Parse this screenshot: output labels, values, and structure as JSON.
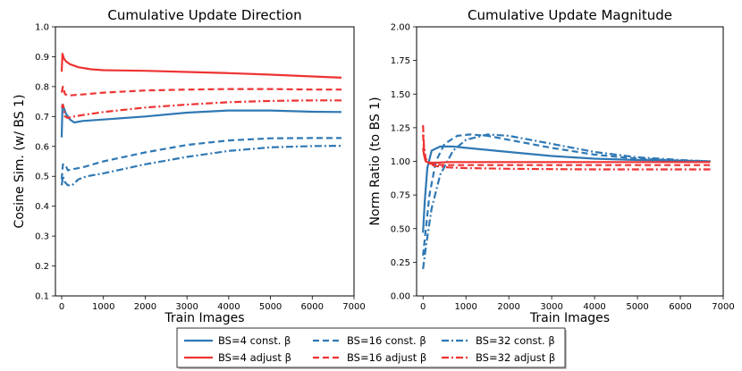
{
  "chart_data": [
    {
      "type": "line",
      "title": "Cumulative Update Direction",
      "xlabel": "Train Images",
      "ylabel": "Cosine Sim. (w/ BS 1)",
      "xlim": [
        -150,
        7000
      ],
      "ylim": [
        0.1,
        1.0
      ],
      "xticks": [
        "0",
        "1000",
        "2000",
        "3000",
        "4000",
        "5000",
        "6000",
        "7000"
      ],
      "yticks": [
        "0.1",
        "0.2",
        "0.3",
        "0.4",
        "0.5",
        "0.6",
        "0.7",
        "0.8",
        "0.9",
        "1.0"
      ],
      "grid": false,
      "series": [
        {
          "name": "BS=4 const. β",
          "color": "#2f78b4",
          "style": "solid",
          "x": [
            0,
            20,
            50,
            100,
            200,
            300,
            500,
            1000,
            2000,
            3000,
            4000,
            5000,
            6000,
            6700
          ],
          "y": [
            0.63,
            0.74,
            0.73,
            0.71,
            0.69,
            0.68,
            0.685,
            0.69,
            0.7,
            0.713,
            0.72,
            0.72,
            0.716,
            0.715
          ]
        },
        {
          "name": "BS=16 const. β",
          "color": "#2f78b4",
          "style": "dashed",
          "x": [
            0,
            30,
            80,
            150,
            300,
            500,
            1000,
            2000,
            3000,
            4000,
            5000,
            6000,
            6700
          ],
          "y": [
            0.49,
            0.54,
            0.54,
            0.52,
            0.525,
            0.53,
            0.55,
            0.58,
            0.605,
            0.62,
            0.627,
            0.628,
            0.628
          ]
        },
        {
          "name": "BS=32 const. β",
          "color": "#2f78b4",
          "style": "dashdot",
          "x": [
            0,
            30,
            80,
            150,
            250,
            400,
            600,
            1000,
            2000,
            3000,
            4000,
            5000,
            6000,
            6700
          ],
          "y": [
            0.47,
            0.5,
            0.48,
            0.47,
            0.47,
            0.49,
            0.5,
            0.51,
            0.54,
            0.565,
            0.585,
            0.597,
            0.601,
            0.602
          ]
        },
        {
          "name": "BS=4 adjust β",
          "color": "#ee3333",
          "style": "solid",
          "x": [
            0,
            20,
            50,
            100,
            200,
            400,
            700,
            1000,
            2000,
            3000,
            4000,
            5000,
            6000,
            6700
          ],
          "y": [
            0.85,
            0.91,
            0.895,
            0.885,
            0.875,
            0.865,
            0.858,
            0.855,
            0.853,
            0.849,
            0.845,
            0.84,
            0.834,
            0.83
          ]
        },
        {
          "name": "BS=16 adjust β",
          "color": "#ee3333",
          "style": "dashed",
          "x": [
            0,
            30,
            80,
            150,
            300,
            600,
            1000,
            2000,
            3000,
            4000,
            5000,
            6000,
            6700
          ],
          "y": [
            0.78,
            0.8,
            0.775,
            0.77,
            0.772,
            0.775,
            0.78,
            0.787,
            0.79,
            0.792,
            0.792,
            0.79,
            0.79
          ]
        },
        {
          "name": "BS=32 adjust β",
          "color": "#ee3333",
          "style": "dashdot",
          "x": [
            0,
            30,
            80,
            150,
            300,
            500,
            1000,
            2000,
            3000,
            4000,
            5000,
            6000,
            6700
          ],
          "y": [
            0.73,
            0.74,
            0.7,
            0.695,
            0.7,
            0.705,
            0.715,
            0.73,
            0.74,
            0.748,
            0.752,
            0.754,
            0.754
          ]
        }
      ]
    },
    {
      "type": "line",
      "title": "Cumulative Update Magnitude",
      "xlabel": "Train Images",
      "ylabel": "Norm Ratio (to BS 1)",
      "xlim": [
        -150,
        7000
      ],
      "ylim": [
        0.0,
        2.0
      ],
      "xticks": [
        "0",
        "1000",
        "2000",
        "3000",
        "4000",
        "5000",
        "6000",
        "7000"
      ],
      "yticks": [
        "0.00",
        "0.25",
        "0.50",
        "0.75",
        "1.00",
        "1.25",
        "1.50",
        "1.75",
        "2.00"
      ],
      "grid": false,
      "series": [
        {
          "name": "BS=4 const. β",
          "color": "#2f78b4",
          "style": "solid",
          "x": [
            0,
            40,
            100,
            200,
            400,
            700,
            1000,
            2000,
            3000,
            4000,
            5000,
            6000,
            6700
          ],
          "y": [
            0.47,
            0.7,
            0.95,
            1.08,
            1.11,
            1.11,
            1.1,
            1.07,
            1.04,
            1.02,
            1.01,
            1.005,
            1.0
          ]
        },
        {
          "name": "BS=16 const. β",
          "color": "#2f78b4",
          "style": "dashed",
          "x": [
            0,
            50,
            150,
            300,
            500,
            800,
            1100,
            1500,
            2000,
            3000,
            4000,
            5000,
            6000,
            6700
          ],
          "y": [
            0.3,
            0.45,
            0.75,
            1.0,
            1.13,
            1.19,
            1.2,
            1.19,
            1.16,
            1.1,
            1.05,
            1.02,
            1.005,
            1.0
          ]
        },
        {
          "name": "BS=32 const. β",
          "color": "#2f78b4",
          "style": "dashdot",
          "x": [
            0,
            60,
            200,
            400,
            700,
            1000,
            1500,
            2000,
            3000,
            4000,
            5000,
            6000,
            6700
          ],
          "y": [
            0.2,
            0.35,
            0.65,
            0.9,
            1.08,
            1.16,
            1.2,
            1.19,
            1.13,
            1.07,
            1.03,
            1.01,
            1.0
          ]
        },
        {
          "name": "BS=4 adjust β",
          "color": "#ee3333",
          "style": "solid",
          "x": [
            0,
            20,
            60,
            150,
            300,
            600,
            1000,
            2000,
            3000,
            4000,
            5000,
            6000,
            6700
          ],
          "y": [
            1.1,
            1.05,
            1.0,
            0.99,
            0.99,
            0.995,
            0.995,
            0.995,
            0.995,
            0.995,
            0.995,
            0.995,
            0.995
          ]
        },
        {
          "name": "BS=16 adjust β",
          "color": "#ee3333",
          "style": "dashed",
          "x": [
            0,
            20,
            60,
            150,
            300,
            600,
            1000,
            2000,
            3000,
            4000,
            5000,
            6000,
            6700
          ],
          "y": [
            1.2,
            1.1,
            1.02,
            0.985,
            0.975,
            0.972,
            0.972,
            0.972,
            0.972,
            0.972,
            0.972,
            0.972,
            0.972
          ]
        },
        {
          "name": "BS=32 adjust β",
          "color": "#ee3333",
          "style": "dashdot",
          "x": [
            0,
            20,
            60,
            150,
            300,
            600,
            1000,
            2000,
            3000,
            4000,
            5000,
            6000,
            6700
          ],
          "y": [
            1.27,
            1.12,
            1.02,
            0.98,
            0.965,
            0.955,
            0.95,
            0.945,
            0.942,
            0.94,
            0.94,
            0.94,
            0.94
          ]
        }
      ]
    }
  ],
  "legend": {
    "placement": "bottom-center",
    "entries": [
      {
        "label": "BS=4 const. β",
        "color": "#2f78b4",
        "style": "solid"
      },
      {
        "label": "BS=16 const. β",
        "color": "#2f78b4",
        "style": "dashed"
      },
      {
        "label": "BS=32 const. β",
        "color": "#2f78b4",
        "style": "dashdot"
      },
      {
        "label": "BS=4 adjust β",
        "color": "#ee3333",
        "style": "solid"
      },
      {
        "label": "BS=16 adjust β",
        "color": "#ee3333",
        "style": "dashed"
      },
      {
        "label": "BS=32 adjust β",
        "color": "#ee3333",
        "style": "dashdot"
      }
    ]
  }
}
